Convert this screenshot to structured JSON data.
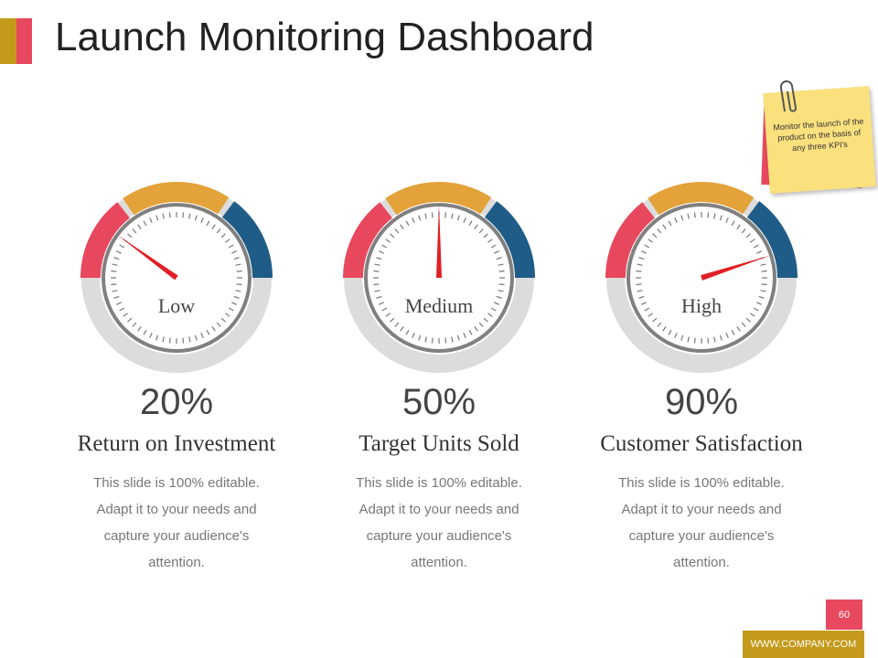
{
  "title": "Launch Monitoring Dashboard",
  "note": "Monitor the launch of the product on the basis of any three KPI's",
  "gauges": [
    {
      "level": "Low",
      "value": 20,
      "value_label": "20%",
      "name": "Return on Investment",
      "description": "This slide is 100% editable. Adapt it to your needs and capture your audience's attention."
    },
    {
      "level": "Medium",
      "value": 50,
      "value_label": "50%",
      "name": "Target Units Sold",
      "description": "This slide is 100% editable. Adapt it to your needs and capture your audience's attention."
    },
    {
      "level": "High",
      "value": 90,
      "value_label": "90%",
      "name": "Customer Satisfaction",
      "description": "This slide is 100% editable. Adapt it to your needs and capture your audience's attention."
    }
  ],
  "page_number": "60",
  "website": "WWW.COMPANY.COM"
}
